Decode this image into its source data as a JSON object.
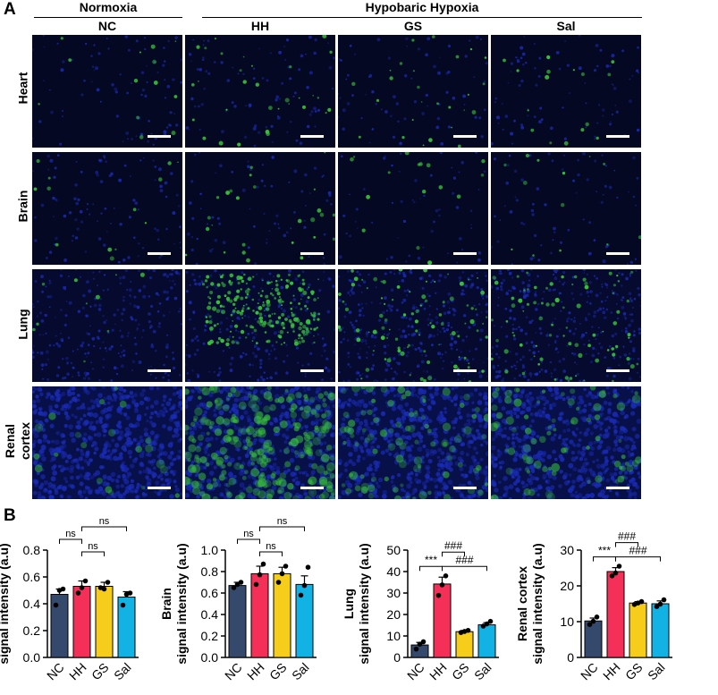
{
  "panel_a": {
    "letter": "A",
    "group_normoxia": "Normoxia",
    "group_hypoxia": "Hypobaric Hypoxia",
    "columns": [
      "NC",
      "HH",
      "GS",
      "Sal"
    ],
    "rows": [
      "Heart",
      "Brain",
      "Lung",
      "Renal\ncortex"
    ]
  },
  "panel_b": {
    "letter": "B"
  },
  "colors": {
    "NC": "#34496b",
    "HH": "#f43058",
    "GS": "#f7cd1c",
    "Sal": "#12b3e4",
    "dapi": "#1a2cb8",
    "signal": "#38c33a"
  },
  "chart_data": [
    {
      "type": "bar",
      "categories": [
        "NC",
        "HH",
        "GS",
        "Sal"
      ],
      "values": [
        0.47,
        0.53,
        0.53,
        0.45
      ],
      "errors": [
        0.04,
        0.04,
        0.03,
        0.04
      ],
      "points": [
        [
          0.39,
          0.5,
          0.51
        ],
        [
          0.48,
          0.52,
          0.57
        ],
        [
          0.52,
          0.51,
          0.56
        ],
        [
          0.39,
          0.47,
          0.48
        ]
      ],
      "ylabel": "Heart\nsignal intensity (a.u)",
      "ylim": [
        0,
        0.8
      ],
      "yticks": [
        "0.0",
        "0.2",
        "0.4",
        "0.6",
        "0.8"
      ],
      "brackets": [
        {
          "from": 0,
          "to": 1,
          "label": "ns",
          "level": 1
        },
        {
          "from": 1,
          "to": 2,
          "label": "ns",
          "level": 0
        },
        {
          "from": 1,
          "to": 3,
          "label": "ns",
          "level": 2
        }
      ]
    },
    {
      "type": "bar",
      "categories": [
        "NC",
        "HH",
        "GS",
        "Sal"
      ],
      "values": [
        0.67,
        0.78,
        0.78,
        0.68
      ],
      "errors": [
        0.03,
        0.07,
        0.06,
        0.08
      ],
      "points": [
        [
          0.65,
          0.68,
          0.7
        ],
        [
          0.68,
          0.77,
          0.87
        ],
        [
          0.7,
          0.78,
          0.85
        ],
        [
          0.58,
          0.67,
          0.84
        ]
      ],
      "ylabel": "Brain\nsignal intensity (a.u)",
      "ylim": [
        0,
        1.0
      ],
      "yticks": [
        "0.0",
        "0.2",
        "0.4",
        "0.6",
        "0.8",
        "1.0"
      ],
      "brackets": [
        {
          "from": 0,
          "to": 1,
          "label": "ns",
          "level": 1
        },
        {
          "from": 1,
          "to": 2,
          "label": "ns",
          "level": 0
        },
        {
          "from": 1,
          "to": 3,
          "label": "ns",
          "level": 2
        }
      ]
    },
    {
      "type": "bar",
      "categories": [
        "NC",
        "HH",
        "GS",
        "Sal"
      ],
      "values": [
        5.8,
        34.2,
        12.0,
        15.2
      ],
      "errors": [
        1.2,
        3.2,
        0.6,
        1.0
      ],
      "points": [
        [
          3.9,
          6.2,
          7.3
        ],
        [
          28.9,
          33.8,
          38.0
        ],
        [
          11.6,
          12.1,
          12.6
        ],
        [
          14.6,
          15.6,
          16.8
        ]
      ],
      "ylabel": "Lung\nsignal intensity (a.u)",
      "ylim": [
        0,
        50
      ],
      "yticks": [
        "0",
        "10",
        "20",
        "30",
        "40",
        "50"
      ],
      "brackets": [
        {
          "from": 0,
          "to": 1,
          "label": "***",
          "level": 0
        },
        {
          "from": 1,
          "to": 2,
          "label": "###",
          "level": 1
        },
        {
          "from": 1,
          "to": 3,
          "label": "###",
          "level": 0
        }
      ]
    },
    {
      "type": "bar",
      "categories": [
        "NC",
        "HH",
        "GS",
        "Sal"
      ],
      "values": [
        10.2,
        24.0,
        15.2,
        15.0
      ],
      "errors": [
        0.8,
        1.1,
        0.4,
        0.8
      ],
      "points": [
        [
          9.2,
          10.1,
          11.3
        ],
        [
          22.8,
          23.6,
          25.5
        ],
        [
          14.8,
          15.2,
          15.6
        ],
        [
          14.2,
          14.9,
          16.1
        ]
      ],
      "ylabel": "Renal cortex\nsignal intensity (a.u)",
      "ylim": [
        0,
        30
      ],
      "yticks": [
        "0",
        "10",
        "20",
        "30"
      ],
      "brackets": [
        {
          "from": 0,
          "to": 1,
          "label": "***",
          "level": 0
        },
        {
          "from": 1,
          "to": 2,
          "label": "###",
          "level": 1
        },
        {
          "from": 1,
          "to": 3,
          "label": "###",
          "level": 0
        }
      ]
    }
  ]
}
